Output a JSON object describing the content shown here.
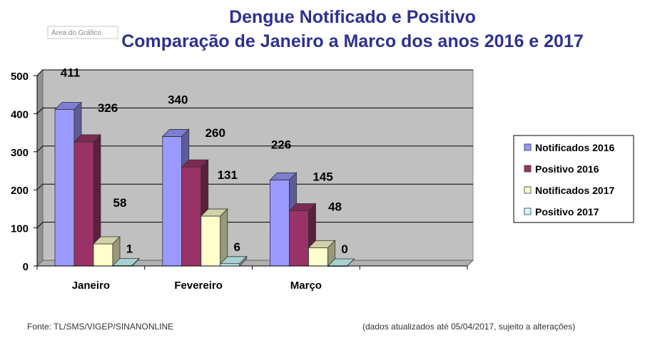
{
  "chart_data": {
    "type": "bar",
    "title": [
      "Dengue Notificado e Positivo",
      "Comparação de Janeiro a Marco dos anos 2016 e 2017"
    ],
    "categories": [
      "Janeiro",
      "Fevereiro",
      "Março"
    ],
    "series": [
      {
        "name": "Notificados 2016",
        "values": [
          411,
          340,
          226
        ],
        "labels": [
          "411",
          "340",
          "226"
        ],
        "color": "#9999ff"
      },
      {
        "name": "Positivo 2016",
        "values": [
          326,
          260,
          145
        ],
        "labels": [
          "326",
          "260",
          "145"
        ],
        "color": "#993366"
      },
      {
        "name": "Notificados 2017",
        "values": [
          58,
          131,
          48
        ],
        "labels": [
          "58",
          "131",
          "48"
        ],
        "color": "#ffffcc"
      },
      {
        "name": "Positivo 2017",
        "values": [
          1,
          6,
          0
        ],
        "labels": [
          "1",
          "6",
          "0"
        ],
        "color": "#ccffff"
      }
    ],
    "yticks": [
      "0",
      "100",
      "200",
      "300",
      "400",
      "500"
    ],
    "ylim": [
      0,
      500
    ],
    "grid": true,
    "legend_position": "right",
    "style": "3d-clustered-column"
  },
  "tooltip": "Área do Gráfico",
  "footer": {
    "source": "Fonte: TL/SMS/VIGEP/SINANONLINE",
    "note": "(dados atualizados até 05/04/2017, sujeito a alterações)"
  }
}
